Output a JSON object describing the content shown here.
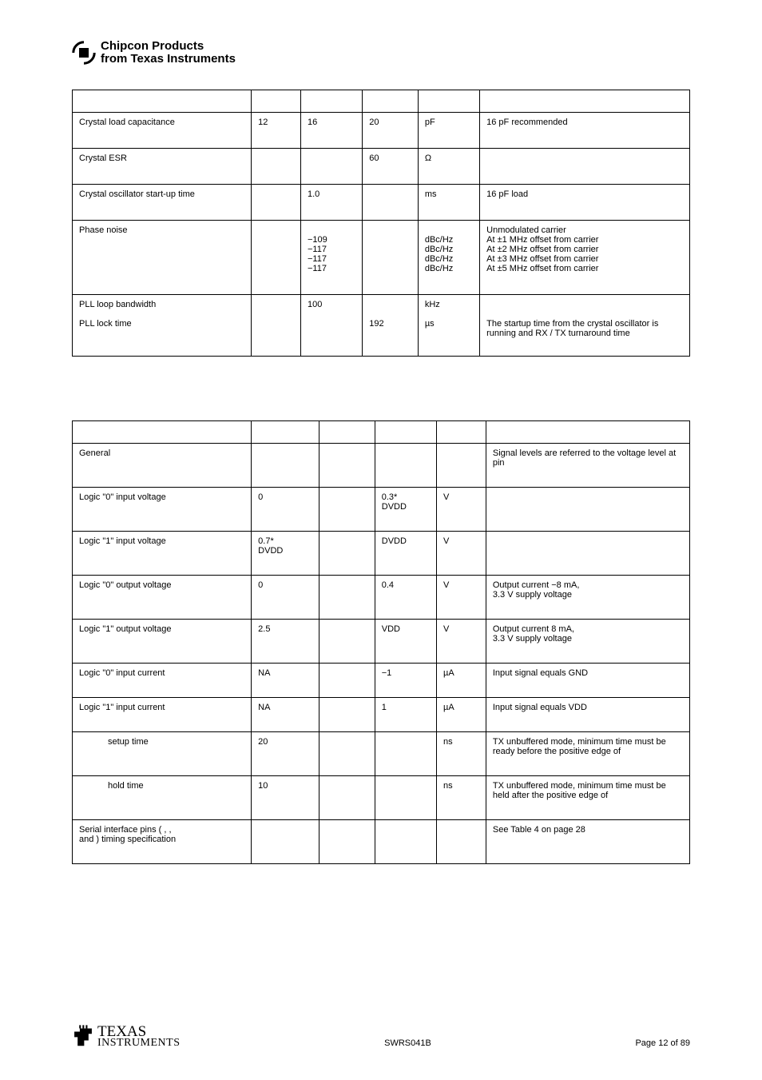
{
  "header": {
    "line1": "Chipcon Products",
    "line2": "from Texas Instruments"
  },
  "table1": {
    "rows": [
      {
        "param": "Crystal load capacitance",
        "min": "12",
        "typ": "16",
        "max": "20",
        "unit": "pF",
        "cond": "16 pF recommended"
      },
      {
        "param": "Crystal ESR",
        "min": "",
        "typ": "",
        "max": "60",
        "unit": "Ω",
        "cond": ""
      },
      {
        "param": "Crystal oscillator start-up time",
        "min": "",
        "typ": "1.0",
        "max": "",
        "unit": "ms",
        "cond": "16 pF load"
      },
      {
        "param": "Phase noise",
        "min": "",
        "typ": "\n−109\n−117\n−117\n−117",
        "max": "",
        "unit": "\ndBc/Hz\ndBc/Hz\ndBc/Hz\ndBc/Hz",
        "cond": "Unmodulated carrier\nAt ±1 MHz offset from carrier\nAt ±2 MHz offset from carrier\nAt ±3 MHz offset from carrier\nAt ±5 MHz offset from carrier"
      },
      {
        "param": "PLL loop bandwidth",
        "min": "",
        "typ": "100",
        "max": "",
        "unit": "kHz",
        "cond": ""
      },
      {
        "param": "PLL lock time",
        "min": "",
        "typ": "",
        "max": "192",
        "unit": "µs",
        "cond": "The startup time from the crystal oscillator is running and RX / TX turnaround time"
      }
    ]
  },
  "table2": {
    "rows": [
      {
        "param": "General",
        "min": "",
        "typ": "",
        "max": "",
        "unit": "",
        "cond": "Signal levels are referred to the voltage level at pin"
      },
      {
        "param": "Logic \"0\" input voltage",
        "min": "0",
        "typ": "",
        "max": "0.3*\nDVDD",
        "unit": "V",
        "cond": ""
      },
      {
        "param": "Logic \"1\" input voltage",
        "min": "0.7*\nDVDD",
        "typ": "",
        "max": "DVDD",
        "unit": "V",
        "cond": ""
      },
      {
        "param": "Logic \"0\" output voltage",
        "min": "0",
        "typ": "",
        "max": "0.4",
        "unit": "V",
        "cond": "Output current −8 mA,\n3.3 V supply voltage"
      },
      {
        "param": "Logic \"1\" output voltage",
        "min": "2.5",
        "typ": "",
        "max": "VDD",
        "unit": "V",
        "cond": "Output current 8 mA,\n3.3 V supply voltage"
      },
      {
        "param": "Logic \"0\" input current",
        "min": "NA",
        "typ": "",
        "max": "−1",
        "unit": "µA",
        "cond": "Input signal equals GND"
      },
      {
        "param": "Logic \"1\" input current",
        "min": "NA",
        "typ": "",
        "max": "1",
        "unit": "µA",
        "cond": "Input signal equals VDD"
      },
      {
        "param": "setup time",
        "indent": true,
        "min": "20",
        "typ": "",
        "max": "",
        "unit": "ns",
        "cond": "TX unbuffered mode, minimum time          must be ready before the positive edge of"
      },
      {
        "param": "hold time",
        "indent": true,
        "min": "10",
        "typ": "",
        "max": "",
        "unit": "ns",
        "cond": "TX unbuffered mode, minimum time          must be held after the positive edge of"
      },
      {
        "param": "Serial interface pins (      ,     ,\nand       ) timing specification",
        "min": "",
        "typ": "",
        "max": "",
        "unit": "",
        "cond": "See Table 4 on page 28"
      }
    ]
  },
  "footer": {
    "ti_top": "TEXAS",
    "ti_bottom": "INSTRUMENTS",
    "doc": "SWRS041B",
    "page": "Page 12 of 89"
  },
  "colors": {
    "text": "#000000",
    "bg": "#ffffff",
    "border": "#000000"
  }
}
